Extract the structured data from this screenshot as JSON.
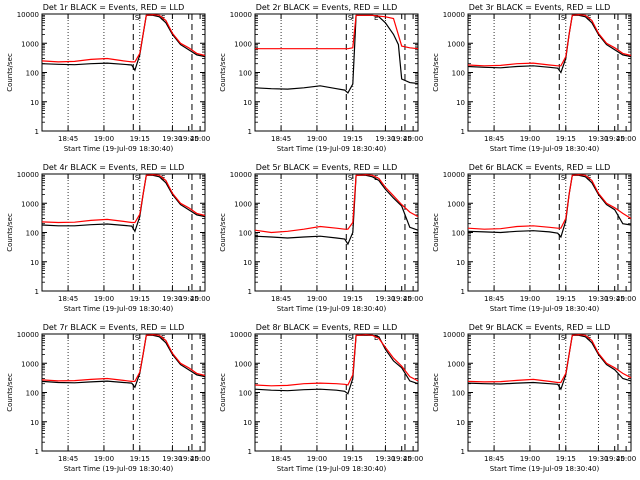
{
  "chart_data": [
    {
      "type": "line",
      "title": "Det 1r BLACK = Events, RED = LLD",
      "xlabel": "Start Time (19-Jul-09 18:30:40)",
      "ylabel": "Counts/sec",
      "x_ticks": [
        "18:45",
        "19:00",
        "19:15",
        "19:30",
        "19:45",
        "20:00"
      ],
      "y_ticks": [
        "1",
        "10",
        "100",
        "1000",
        "10000"
      ],
      "ylim": [
        1,
        10000
      ],
      "y_scale": "log",
      "markers": [
        "S",
        "E"
      ],
      "colors": {
        "events": "#000000",
        "lld": "#ff0000"
      },
      "series": [
        {
          "name": "BLACK = Events",
          "x": [
            0,
            0.1,
            0.2,
            0.3,
            0.4,
            0.5,
            0.55,
            0.57,
            0.6,
            0.62,
            0.64,
            0.68,
            0.72,
            0.76,
            0.8,
            0.85,
            0.9,
            0.95,
            1.0
          ],
          "y": [
            200,
            190,
            185,
            200,
            210,
            190,
            180,
            120,
            400,
            2000,
            9000,
            9000,
            8000,
            5000,
            2000,
            900,
            600,
            400,
            350
          ]
        },
        {
          "name": "RED = LLD",
          "x": [
            0,
            0.1,
            0.2,
            0.3,
            0.4,
            0.5,
            0.55,
            0.57,
            0.6,
            0.62,
            0.64,
            0.68,
            0.72,
            0.76,
            0.8,
            0.85,
            0.9,
            0.95,
            1.0
          ],
          "y": [
            250,
            230,
            240,
            280,
            300,
            250,
            230,
            230,
            450,
            2000,
            9000,
            9500,
            9000,
            6000,
            2200,
            1000,
            700,
            450,
            380
          ]
        }
      ]
    },
    {
      "type": "line",
      "title": "Det 2r BLACK = Events, RED = LLD",
      "xlabel": "Start Time (19-Jul-09 18:30:40)",
      "ylabel": "Counts/sec",
      "x_ticks": [
        "18:45",
        "19:00",
        "19:15",
        "19:30",
        "19:45",
        "20:00"
      ],
      "y_ticks": [
        "1",
        "10",
        "100",
        "1000",
        "10000"
      ],
      "ylim": [
        1,
        10000
      ],
      "y_scale": "log",
      "markers": [
        "S",
        "E"
      ],
      "colors": {
        "events": "#000000",
        "lld": "#ff0000"
      },
      "series": [
        {
          "name": "BLACK = Events",
          "x": [
            0,
            0.1,
            0.2,
            0.3,
            0.4,
            0.5,
            0.55,
            0.57,
            0.6,
            0.62,
            0.64,
            0.68,
            0.72,
            0.76,
            0.8,
            0.85,
            0.88,
            0.9,
            0.95,
            1.0
          ],
          "y": [
            30,
            28,
            27,
            30,
            35,
            28,
            25,
            20,
            40,
            9000,
            9000,
            9000,
            9000,
            8000,
            5000,
            2000,
            900,
            60,
            45,
            42
          ]
        },
        {
          "name": "RED = LLD",
          "x": [
            0,
            0.1,
            0.2,
            0.3,
            0.4,
            0.5,
            0.55,
            0.57,
            0.6,
            0.62,
            0.64,
            0.68,
            0.72,
            0.76,
            0.8,
            0.85,
            0.9,
            0.95,
            1.0
          ],
          "y": [
            650,
            650,
            650,
            650,
            650,
            650,
            650,
            650,
            700,
            9000,
            9000,
            9000,
            9000,
            8500,
            8000,
            7000,
            800,
            700,
            650
          ]
        }
      ]
    },
    {
      "type": "line",
      "title": "Det 3r BLACK = Events, RED = LLD",
      "xlabel": "Start Time (19-Jul-09 18:30:40)",
      "ylabel": "Counts/sec",
      "x_ticks": [
        "18:45",
        "19:00",
        "19:15",
        "19:30",
        "19:45",
        "20:00"
      ],
      "y_ticks": [
        "1",
        "10",
        "100",
        "1000",
        "10000"
      ],
      "ylim": [
        1,
        10000
      ],
      "y_scale": "log",
      "markers": [
        "S",
        "E"
      ],
      "colors": {
        "events": "#000000",
        "lld": "#ff0000"
      },
      "series": [
        {
          "name": "BLACK = Events",
          "x": [
            0,
            0.1,
            0.2,
            0.3,
            0.4,
            0.5,
            0.55,
            0.57,
            0.6,
            0.62,
            0.64,
            0.68,
            0.72,
            0.76,
            0.8,
            0.85,
            0.9,
            0.95,
            1.0
          ],
          "y": [
            160,
            150,
            145,
            160,
            170,
            150,
            140,
            100,
            300,
            2000,
            9000,
            9000,
            8000,
            5000,
            2000,
            900,
            600,
            400,
            350
          ]
        },
        {
          "name": "RED = LLD",
          "x": [
            0,
            0.1,
            0.2,
            0.3,
            0.4,
            0.5,
            0.55,
            0.57,
            0.6,
            0.62,
            0.64,
            0.68,
            0.72,
            0.76,
            0.8,
            0.85,
            0.9,
            0.95,
            1.0
          ],
          "y": [
            180,
            170,
            175,
            200,
            210,
            180,
            170,
            170,
            350,
            2000,
            9000,
            9500,
            9000,
            6000,
            2200,
            1000,
            700,
            450,
            380
          ]
        }
      ]
    },
    {
      "type": "line",
      "title": "Det 4r BLACK = Events, RED = LLD",
      "xlabel": "Start Time (19-Jul-09 18:30:40)",
      "ylabel": "Counts/sec",
      "x_ticks": [
        "18:45",
        "19:00",
        "19:15",
        "19:30",
        "19:45",
        "20:00"
      ],
      "y_ticks": [
        "1",
        "10",
        "100",
        "1000",
        "10000"
      ],
      "ylim": [
        1,
        10000
      ],
      "y_scale": "log",
      "markers": [
        "S",
        "E"
      ],
      "colors": {
        "events": "#000000",
        "lld": "#ff0000"
      },
      "series": [
        {
          "name": "BLACK = Events",
          "x": [
            0,
            0.1,
            0.2,
            0.3,
            0.4,
            0.5,
            0.55,
            0.57,
            0.6,
            0.62,
            0.64,
            0.68,
            0.72,
            0.76,
            0.8,
            0.85,
            0.9,
            0.95,
            1.0
          ],
          "y": [
            180,
            170,
            170,
            185,
            195,
            175,
            165,
            110,
            350,
            2000,
            9000,
            9000,
            8000,
            5000,
            2000,
            900,
            600,
            400,
            350
          ]
        },
        {
          "name": "RED = LLD",
          "x": [
            0,
            0.1,
            0.2,
            0.3,
            0.4,
            0.5,
            0.55,
            0.57,
            0.6,
            0.62,
            0.64,
            0.68,
            0.72,
            0.76,
            0.8,
            0.85,
            0.9,
            0.95,
            1.0
          ],
          "y": [
            230,
            220,
            225,
            260,
            280,
            240,
            220,
            220,
            420,
            2000,
            9000,
            9500,
            9000,
            6000,
            2200,
            1000,
            700,
            450,
            380
          ]
        }
      ]
    },
    {
      "type": "line",
      "title": "Det 5r BLACK = Events, RED = LLD",
      "xlabel": "Start Time (19-Jul-09 18:30:40)",
      "ylabel": "Counts/sec",
      "x_ticks": [
        "18:45",
        "19:00",
        "19:15",
        "19:30",
        "19:45",
        "20:00"
      ],
      "y_ticks": [
        "1",
        "10",
        "100",
        "1000",
        "10000"
      ],
      "ylim": [
        1,
        10000
      ],
      "y_scale": "log",
      "markers": [
        "S",
        "E"
      ],
      "colors": {
        "events": "#000000",
        "lld": "#ff0000"
      },
      "series": [
        {
          "name": "BLACK = Events",
          "x": [
            0,
            0.1,
            0.2,
            0.3,
            0.4,
            0.5,
            0.55,
            0.57,
            0.6,
            0.62,
            0.64,
            0.68,
            0.72,
            0.76,
            0.8,
            0.85,
            0.9,
            0.95,
            1.0
          ],
          "y": [
            75,
            70,
            65,
            70,
            75,
            65,
            60,
            40,
            100,
            9000,
            9000,
            9000,
            8000,
            6000,
            3000,
            1500,
            800,
            150,
            120
          ]
        },
        {
          "name": "RED = LLD",
          "x": [
            0,
            0.1,
            0.2,
            0.3,
            0.4,
            0.5,
            0.55,
            0.57,
            0.6,
            0.62,
            0.64,
            0.68,
            0.72,
            0.76,
            0.8,
            0.85,
            0.9,
            0.95,
            1.0
          ],
          "y": [
            120,
            100,
            110,
            130,
            160,
            140,
            130,
            130,
            220,
            9000,
            9000,
            9500,
            9000,
            7000,
            3500,
            1800,
            900,
            500,
            350
          ]
        }
      ]
    },
    {
      "type": "line",
      "title": "Det 6r BLACK = Events, RED = LLD",
      "xlabel": "Start Time (19-Jul-09 18:30:40)",
      "ylabel": "Counts/sec",
      "x_ticks": [
        "18:45",
        "19:00",
        "19:15",
        "19:30",
        "19:45",
        "20:00"
      ],
      "y_ticks": [
        "1",
        "10",
        "100",
        "1000",
        "10000"
      ],
      "ylim": [
        1,
        10000
      ],
      "y_scale": "log",
      "markers": [
        "S",
        "E"
      ],
      "colors": {
        "events": "#000000",
        "lld": "#ff0000"
      },
      "series": [
        {
          "name": "BLACK = Events",
          "x": [
            0,
            0.1,
            0.2,
            0.3,
            0.4,
            0.5,
            0.55,
            0.57,
            0.6,
            0.62,
            0.64,
            0.68,
            0.72,
            0.76,
            0.8,
            0.85,
            0.9,
            0.95,
            1.0
          ],
          "y": [
            110,
            105,
            100,
            110,
            115,
            105,
            95,
            70,
            250,
            2000,
            9000,
            9000,
            8000,
            5000,
            2000,
            900,
            600,
            200,
            180
          ]
        },
        {
          "name": "RED = LLD",
          "x": [
            0,
            0.1,
            0.2,
            0.3,
            0.4,
            0.5,
            0.55,
            0.57,
            0.6,
            0.62,
            0.64,
            0.68,
            0.72,
            0.76,
            0.8,
            0.85,
            0.9,
            0.95,
            1.0
          ],
          "y": [
            140,
            130,
            135,
            160,
            170,
            150,
            140,
            140,
            300,
            2000,
            9000,
            9500,
            9000,
            6000,
            2200,
            1000,
            700,
            450,
            300
          ]
        }
      ]
    },
    {
      "type": "line",
      "title": "Det 7r BLACK = Events, RED = LLD",
      "xlabel": "Start Time (19-Jul-09 18:30:40)",
      "ylabel": "Counts/sec",
      "x_ticks": [
        "18:45",
        "19:00",
        "19:15",
        "19:30",
        "19:45",
        "20:00"
      ],
      "y_ticks": [
        "1",
        "10",
        "100",
        "1000",
        "10000"
      ],
      "ylim": [
        1,
        10000
      ],
      "y_scale": "log",
      "markers": [
        "S",
        "E"
      ],
      "colors": {
        "events": "#000000",
        "lld": "#ff0000"
      },
      "series": [
        {
          "name": "BLACK = Events",
          "x": [
            0,
            0.1,
            0.2,
            0.3,
            0.4,
            0.5,
            0.55,
            0.57,
            0.6,
            0.62,
            0.64,
            0.68,
            0.72,
            0.76,
            0.8,
            0.85,
            0.9,
            0.95,
            1.0
          ],
          "y": [
            240,
            220,
            215,
            230,
            245,
            220,
            210,
            150,
            450,
            2000,
            9000,
            9000,
            8000,
            5000,
            2000,
            900,
            600,
            400,
            350
          ]
        },
        {
          "name": "RED = LLD",
          "x": [
            0,
            0.1,
            0.2,
            0.3,
            0.4,
            0.5,
            0.55,
            0.57,
            0.6,
            0.62,
            0.64,
            0.68,
            0.72,
            0.76,
            0.8,
            0.85,
            0.9,
            0.95,
            1.0
          ],
          "y": [
            270,
            250,
            255,
            280,
            300,
            260,
            240,
            240,
            500,
            2000,
            9000,
            9500,
            9000,
            6000,
            2200,
            1000,
            700,
            450,
            380
          ]
        }
      ]
    },
    {
      "type": "line",
      "title": "Det 8r BLACK = Events, RED = LLD",
      "xlabel": "Start Time (19-Jul-09 18:30:40)",
      "ylabel": "Counts/sec",
      "x_ticks": [
        "18:45",
        "19:00",
        "19:15",
        "19:30",
        "19:45",
        "20:00"
      ],
      "y_ticks": [
        "1",
        "10",
        "100",
        "1000",
        "10000"
      ],
      "ylim": [
        1,
        10000
      ],
      "y_scale": "log",
      "markers": [
        "S",
        "E"
      ],
      "colors": {
        "events": "#000000",
        "lld": "#ff0000"
      },
      "series": [
        {
          "name": "BLACK = Events",
          "x": [
            0,
            0.1,
            0.2,
            0.3,
            0.4,
            0.5,
            0.55,
            0.57,
            0.6,
            0.62,
            0.64,
            0.68,
            0.72,
            0.76,
            0.8,
            0.85,
            0.9,
            0.95,
            1.0
          ],
          "y": [
            130,
            120,
            115,
            125,
            130,
            120,
            110,
            90,
            300,
            9000,
            9000,
            9000,
            9000,
            8000,
            3000,
            1200,
            700,
            250,
            200
          ]
        },
        {
          "name": "RED = LLD",
          "x": [
            0,
            0.1,
            0.2,
            0.3,
            0.4,
            0.5,
            0.55,
            0.57,
            0.6,
            0.62,
            0.64,
            0.68,
            0.72,
            0.76,
            0.8,
            0.85,
            0.9,
            0.95,
            1.0
          ],
          "y": [
            180,
            170,
            175,
            200,
            210,
            200,
            190,
            180,
            400,
            9000,
            9000,
            9500,
            9000,
            7000,
            3500,
            1500,
            800,
            350,
            250
          ]
        }
      ]
    },
    {
      "type": "line",
      "title": "Det 9r BLACK = Events, RED = LLD",
      "xlabel": "Start Time (19-Jul-09 18:30:40)",
      "ylabel": "Counts/sec",
      "x_ticks": [
        "18:45",
        "19:00",
        "19:15",
        "19:30",
        "19:45",
        "20:00"
      ],
      "y_ticks": [
        "1",
        "10",
        "100",
        "1000",
        "10000"
      ],
      "ylim": [
        1,
        10000
      ],
      "y_scale": "log",
      "markers": [
        "S",
        "E"
      ],
      "colors": {
        "events": "#000000",
        "lld": "#ff0000"
      },
      "series": [
        {
          "name": "BLACK = Events",
          "x": [
            0,
            0.1,
            0.2,
            0.3,
            0.4,
            0.5,
            0.55,
            0.57,
            0.6,
            0.62,
            0.64,
            0.68,
            0.72,
            0.76,
            0.8,
            0.85,
            0.9,
            0.95,
            1.0
          ],
          "y": [
            210,
            200,
            195,
            210,
            220,
            200,
            190,
            130,
            400,
            2000,
            9000,
            9000,
            8000,
            5000,
            2000,
            900,
            600,
            300,
            250
          ]
        },
        {
          "name": "RED = LLD",
          "x": [
            0,
            0.1,
            0.2,
            0.3,
            0.4,
            0.5,
            0.55,
            0.57,
            0.6,
            0.62,
            0.64,
            0.68,
            0.72,
            0.76,
            0.8,
            0.85,
            0.9,
            0.95,
            1.0
          ],
          "y": [
            240,
            230,
            235,
            260,
            280,
            240,
            220,
            220,
            450,
            2000,
            9000,
            9500,
            9000,
            6000,
            2200,
            1000,
            700,
            450,
            320
          ]
        }
      ]
    }
  ]
}
